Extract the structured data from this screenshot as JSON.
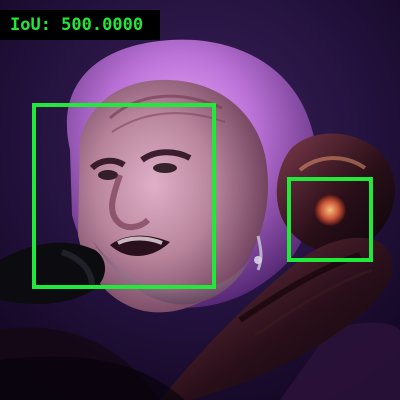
{
  "overlay": {
    "iou_label": "IoU: 500.0000",
    "box_color": "#22e83a",
    "label_bg": "#000000",
    "box_count": 2
  },
  "photo": {
    "subject_icon": "concert-photo-face-icon"
  }
}
